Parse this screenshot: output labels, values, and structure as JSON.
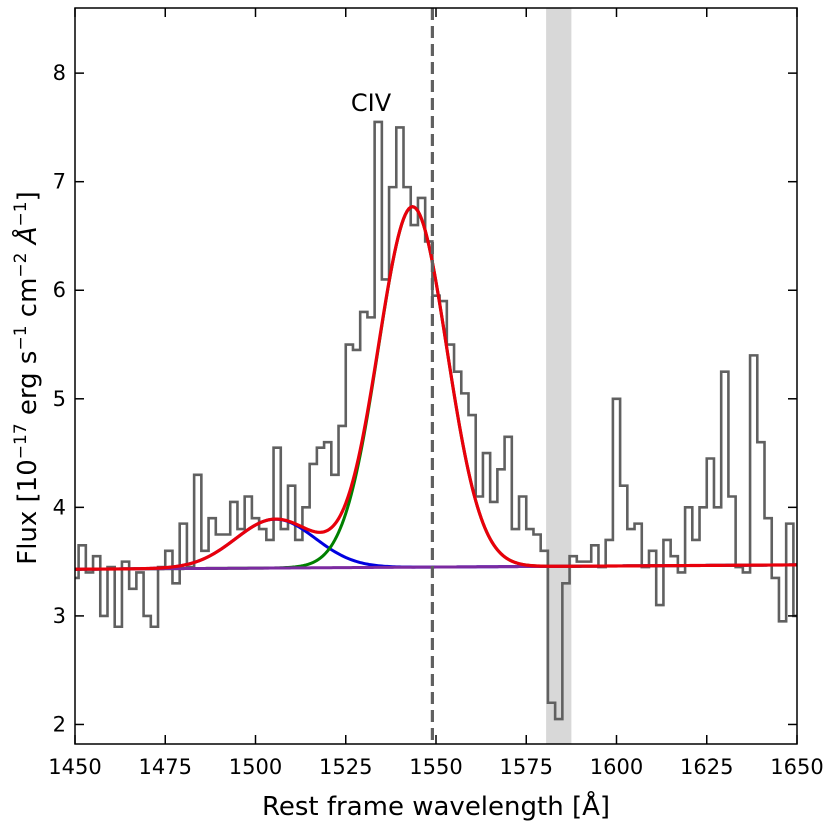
{
  "chart_data": {
    "type": "line",
    "xlabel": "Rest frame wavelength [Å]",
    "ylabel_parts": [
      "Flux [10",
      "−17",
      " erg s",
      "−1",
      " cm",
      "−2",
      " Å",
      "−1",
      "]"
    ],
    "xlim": [
      1450,
      1650
    ],
    "ylim": [
      1.82,
      8.6
    ],
    "xticks": [
      1450,
      1475,
      1500,
      1525,
      1550,
      1575,
      1600,
      1625,
      1650
    ],
    "yticks": [
      2,
      3,
      4,
      5,
      6,
      7,
      8
    ],
    "annotation": {
      "text": "CIV",
      "x": 1532,
      "y": 7.65
    },
    "line_center": 1549,
    "masked_region": [
      1580.5,
      1587.5
    ],
    "continuum": {
      "a": 3.43,
      "b": 0.0002
    },
    "broad_component": {
      "amplitude": 3.32,
      "center": 1543.5,
      "sigma": 9.5
    },
    "blue_component": {
      "amplitude": 0.45,
      "center": 1505.5,
      "sigma": 11.0
    },
    "colors": {
      "data": "#606060",
      "total": "#e8000b",
      "broad": "#008000",
      "blue": "#0000e0",
      "continuum": "#7b2aa0",
      "mask": "#d8d8d8",
      "center_line": "#606060"
    },
    "spectrum": {
      "x": [
        1450,
        1452,
        1454,
        1456,
        1458,
        1460,
        1462,
        1464,
        1466,
        1468,
        1470,
        1472,
        1474,
        1476,
        1478,
        1480,
        1482,
        1484,
        1486,
        1488,
        1490,
        1492,
        1494,
        1496,
        1498,
        1500,
        1502,
        1504,
        1506,
        1508,
        1510,
        1512,
        1514,
        1516,
        1518,
        1520,
        1522,
        1524,
        1526,
        1528,
        1530,
        1532,
        1534,
        1536,
        1538,
        1540,
        1542,
        1544,
        1546,
        1548,
        1550,
        1552,
        1554,
        1556,
        1558,
        1560,
        1562,
        1564,
        1566,
        1568,
        1570,
        1572,
        1574,
        1576,
        1578,
        1580,
        1582,
        1584,
        1586,
        1588,
        1590,
        1592,
        1594,
        1596,
        1598,
        1600,
        1602,
        1604,
        1606,
        1608,
        1610,
        1612,
        1614,
        1616,
        1618,
        1620,
        1622,
        1624,
        1626,
        1628,
        1630,
        1632,
        1634,
        1636,
        1638,
        1640,
        1642,
        1644,
        1646,
        1648,
        1650
      ],
      "flux": [
        3.35,
        3.65,
        3.4,
        3.55,
        3.0,
        3.45,
        2.9,
        3.5,
        3.25,
        3.4,
        3.0,
        2.9,
        3.45,
        3.6,
        3.3,
        3.85,
        3.45,
        4.3,
        3.6,
        3.9,
        3.75,
        3.75,
        4.05,
        3.8,
        4.1,
        3.9,
        3.8,
        3.7,
        4.55,
        3.8,
        4.2,
        3.7,
        4.0,
        4.4,
        4.55,
        4.6,
        4.3,
        4.75,
        5.5,
        5.45,
        5.8,
        5.75,
        7.55,
        6.1,
        6.95,
        7.5,
        6.95,
        6.6,
        6.85,
        6.45,
        5.95,
        5.9,
        5.5,
        5.25,
        5.05,
        4.85,
        4.1,
        4.5,
        4.05,
        4.35,
        4.65,
        3.8,
        4.1,
        3.8,
        3.75,
        3.6,
        2.2,
        2.05,
        3.3,
        3.55,
        3.5,
        3.5,
        3.65,
        3.45,
        3.7,
        5.0,
        4.2,
        3.8,
        3.85,
        3.45,
        3.6,
        3.1,
        3.7,
        3.55,
        3.4,
        4.0,
        3.7,
        4.0,
        4.45,
        4.0,
        5.25,
        4.1,
        3.45,
        3.4,
        5.4,
        4.6,
        3.9,
        3.35,
        2.95,
        3.85,
        3.0
      ]
    }
  }
}
